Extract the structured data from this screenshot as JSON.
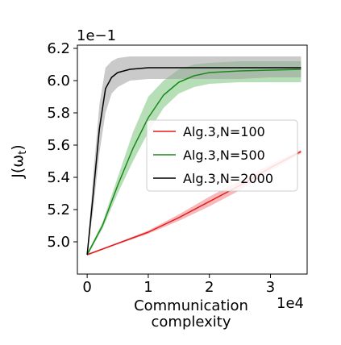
{
  "chart_data": {
    "type": "line",
    "title": "",
    "xlabel_lines": [
      "Communication",
      "complexity"
    ],
    "ylabel": "J(ωt)",
    "x_offset_text": "1e4",
    "y_offset_text": "1e−1",
    "xlim": [
      -0.16,
      3.6
    ],
    "ylim": [
      4.8,
      6.22
    ],
    "x_ticks": [
      0,
      1,
      2,
      3
    ],
    "x_tick_labels": [
      "0",
      "1",
      "2",
      "3"
    ],
    "y_ticks": [
      5.0,
      5.2,
      5.4,
      5.6,
      5.8,
      6.0,
      6.2
    ],
    "y_tick_labels": [
      "5.0",
      "5.2",
      "5.4",
      "5.6",
      "5.8",
      "6.0",
      "6.2"
    ],
    "grid": false,
    "legend_position": "center-right",
    "series": [
      {
        "name": "Alg.3,N=100",
        "color": "#e41a1c",
        "band_color": "#f08080",
        "x": [
          0,
          0.5,
          1.0,
          1.5,
          2.0,
          2.5,
          3.0,
          3.5
        ],
        "y": [
          4.92,
          4.99,
          5.06,
          5.15,
          5.25,
          5.35,
          5.46,
          5.56
        ],
        "lower": [
          4.915,
          4.985,
          5.05,
          5.13,
          5.22,
          5.32,
          5.44,
          5.55
        ],
        "upper": [
          4.925,
          4.995,
          5.07,
          5.17,
          5.28,
          5.38,
          5.48,
          5.57
        ]
      },
      {
        "name": "Alg.3,N=500",
        "color": "#1a8a1a",
        "band_color": "#7cc47c",
        "x": [
          0,
          0.25,
          0.5,
          0.75,
          1.0,
          1.25,
          1.5,
          1.75,
          2.0,
          2.5,
          3.0,
          3.5
        ],
        "y": [
          4.92,
          5.1,
          5.35,
          5.58,
          5.77,
          5.91,
          5.99,
          6.03,
          6.05,
          6.06,
          6.065,
          6.07
        ],
        "lower": [
          4.91,
          5.08,
          5.3,
          5.5,
          5.68,
          5.83,
          5.92,
          5.96,
          5.98,
          5.99,
          5.99,
          5.99
        ],
        "upper": [
          4.93,
          5.12,
          5.4,
          5.68,
          5.9,
          6.0,
          6.07,
          6.1,
          6.11,
          6.12,
          6.12,
          6.12
        ]
      },
      {
        "name": "Alg.3,N=2000",
        "color": "#000000",
        "band_color": "#9e9e9e",
        "x": [
          0,
          0.1,
          0.2,
          0.3,
          0.4,
          0.5,
          0.7,
          1.0,
          1.5,
          2.0,
          2.5,
          3.0,
          3.5
        ],
        "y": [
          4.92,
          5.3,
          5.7,
          5.95,
          6.02,
          6.05,
          6.07,
          6.08,
          6.08,
          6.08,
          6.08,
          6.08,
          6.08
        ],
        "lower": [
          4.91,
          5.2,
          5.55,
          5.8,
          5.92,
          5.96,
          6.0,
          6.01,
          6.01,
          6.01,
          6.01,
          6.02,
          6.02
        ],
        "upper": [
          4.93,
          5.42,
          5.85,
          6.08,
          6.12,
          6.14,
          6.15,
          6.15,
          6.15,
          6.15,
          6.15,
          6.15,
          6.15
        ]
      }
    ]
  }
}
